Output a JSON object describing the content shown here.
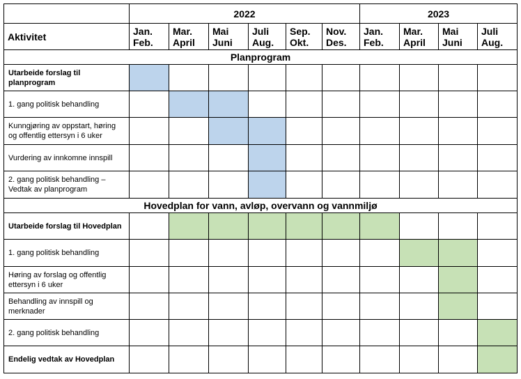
{
  "header": {
    "activity_label": "Aktivitet",
    "years": [
      {
        "label": "2022",
        "span": 6
      },
      {
        "label": "2023",
        "span": 4
      }
    ],
    "periods": [
      {
        "line1": "Jan.",
        "line2": "Feb."
      },
      {
        "line1": "Mar.",
        "line2": "April"
      },
      {
        "line1": "Mai",
        "line2": "Juni"
      },
      {
        "line1": "Juli",
        "line2": "Aug."
      },
      {
        "line1": "Sep.",
        "line2": "Okt."
      },
      {
        "line1": "Nov.",
        "line2": "Des."
      },
      {
        "line1": "Jan.",
        "line2": "Feb."
      },
      {
        "line1": "Mar.",
        "line2": "April"
      },
      {
        "line1": "Mai",
        "line2": "Juni"
      },
      {
        "line1": "Juli",
        "line2": "Aug."
      }
    ]
  },
  "sections": [
    {
      "title": "Planprogram",
      "color": "#bdd4ec",
      "fill_class": "fill-blue",
      "rows": [
        {
          "lines": [
            "Utarbeide forslag til planprogram"
          ],
          "bold": true,
          "filled": [
            0
          ]
        },
        {
          "lines": [
            "1. gang politisk behandling"
          ],
          "bold": false,
          "filled": [
            1,
            2
          ]
        },
        {
          "lines": [
            "Kunngjøring av oppstart, høring",
            "og offentlig ettersyn i 6 uker"
          ],
          "bold": false,
          "filled": [
            2,
            3
          ]
        },
        {
          "lines": [
            "Vurdering av innkomne innspill"
          ],
          "bold": false,
          "filled": [
            3
          ]
        },
        {
          "lines": [
            "2. gang politisk behandling –",
            "Vedtak av planprogram"
          ],
          "bold": false,
          "filled": [
            3
          ]
        }
      ]
    },
    {
      "title": "Hovedplan for vann, avløp, overvann og vannmiljø",
      "color": "#c7e1b6",
      "fill_class": "fill-green",
      "rows": [
        {
          "lines": [
            "Utarbeide forslag til Hovedplan"
          ],
          "bold": true,
          "filled": [
            1,
            2,
            3,
            4,
            5,
            6
          ]
        },
        {
          "lines": [
            "1. gang politisk behandling"
          ],
          "bold": false,
          "filled": [
            7,
            8
          ]
        },
        {
          "lines": [
            "Høring av forslag og offentlig",
            "ettersyn i 6 uker"
          ],
          "bold": false,
          "filled": [
            8
          ]
        },
        {
          "lines": [
            "Behandling av innspill og",
            "merknader"
          ],
          "bold": false,
          "filled": [
            8
          ]
        },
        {
          "lines": [
            "2. gang politisk behandling"
          ],
          "bold": false,
          "filled": [
            9
          ]
        },
        {
          "lines": [
            "Endelig vedtak av Hovedplan"
          ],
          "bold": true,
          "filled": [
            9
          ]
        }
      ]
    }
  ]
}
